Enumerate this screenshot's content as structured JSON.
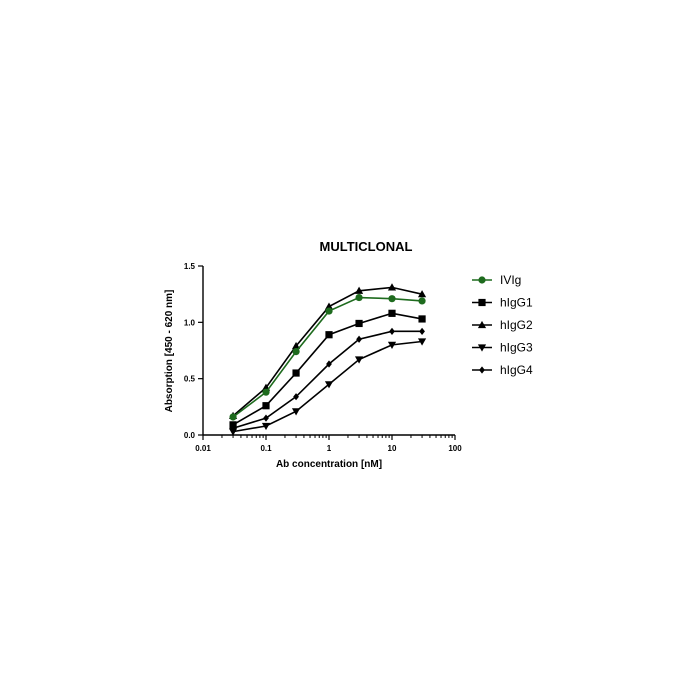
{
  "chart_data": {
    "type": "line",
    "title": "MULTICLONAL",
    "xlabel": "Ab concentration [nM]",
    "ylabel": "Absorption [450 - 620 nm]",
    "xscale": "log",
    "xlim": [
      0.01,
      100
    ],
    "ylim": [
      0,
      1.5
    ],
    "xticks": [
      "0.01",
      "0.1",
      "1",
      "10",
      "100"
    ],
    "xtick_values": [
      0.01,
      0.1,
      1,
      10,
      100
    ],
    "yticks": [
      "0.0",
      "0.5",
      "1.0",
      "1.5"
    ],
    "ytick_values": [
      0,
      0.5,
      1.0,
      1.5
    ],
    "grid": false,
    "legend_position": "right",
    "x": [
      0.03,
      0.1,
      0.3,
      1,
      3,
      10,
      30
    ],
    "series": [
      {
        "name": "IVIg",
        "marker": "circle",
        "color": "#1e6b1e",
        "values": [
          0.16,
          0.38,
          0.74,
          1.1,
          1.22,
          1.21,
          1.19
        ]
      },
      {
        "name": "hIgG1",
        "marker": "square",
        "color": "#000000",
        "values": [
          0.09,
          0.26,
          0.55,
          0.89,
          0.99,
          1.08,
          1.03
        ]
      },
      {
        "name": "hIgG2",
        "marker": "triangle-up",
        "color": "#000000",
        "values": [
          0.17,
          0.42,
          0.79,
          1.14,
          1.28,
          1.31,
          1.25
        ]
      },
      {
        "name": "hIgG3",
        "marker": "triangle-down",
        "color": "#000000",
        "values": [
          0.03,
          0.08,
          0.21,
          0.45,
          0.67,
          0.8,
          0.83
        ]
      },
      {
        "name": "hIgG4",
        "marker": "diamond",
        "color": "#000000",
        "values": [
          0.06,
          0.15,
          0.34,
          0.63,
          0.85,
          0.92,
          0.92
        ]
      }
    ]
  }
}
